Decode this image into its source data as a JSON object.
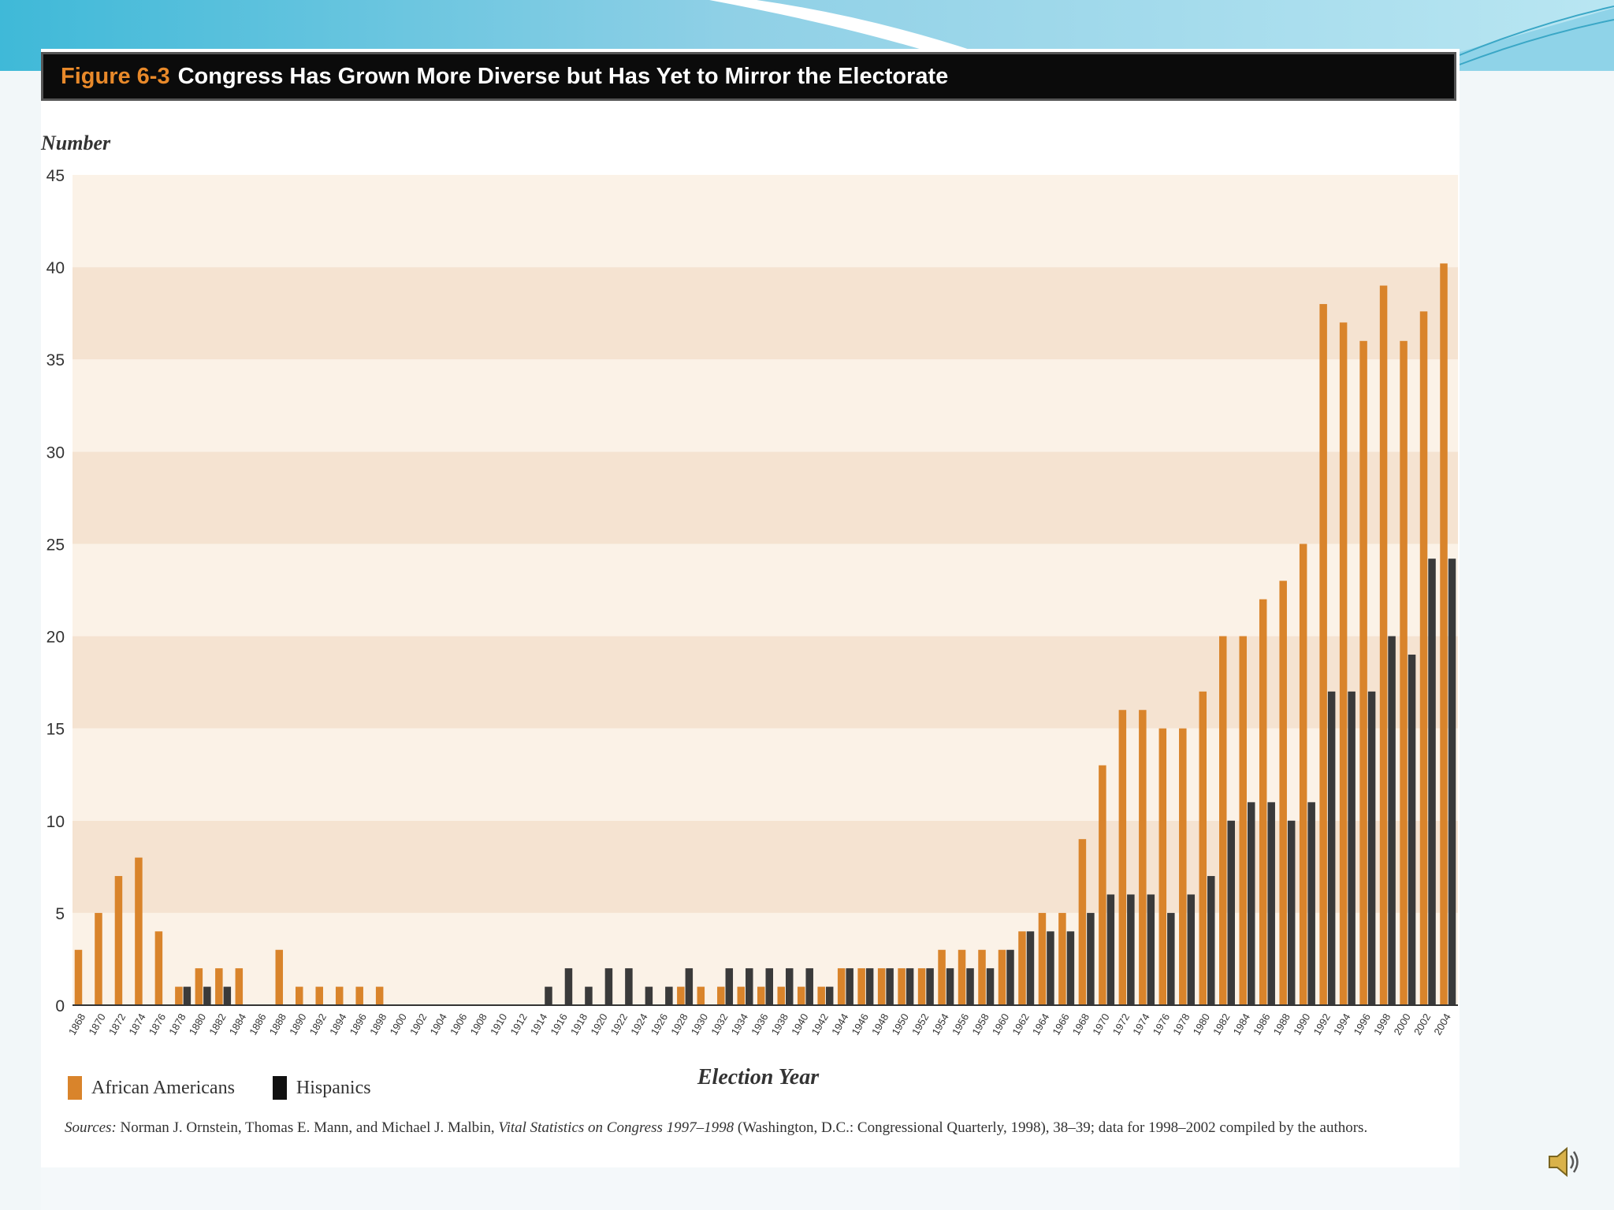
{
  "figure": {
    "number": "Figure 6-3",
    "title": "Congress Has Grown More Diverse but Has Yet to Mirror the Electorate"
  },
  "legend": {
    "african_americans": "African Americans",
    "hispanics": "Hispanics"
  },
  "source": {
    "label": "Sources:",
    "authors": "Norman J. Ornstein, Thomas E. Mann, and Michael J. Malbin,",
    "book": "Vital Statistics on Congress 1997–1998",
    "rest": "(Washington, D.C.: Congressional Quarterly, 1998), 38–39; data for 1998–2002 compiled by the authors."
  },
  "colors": {
    "african_americans": "#d9842b",
    "hispanics": "#3a3a3a",
    "band_light": "#fbf2e7",
    "band_dark": "#f5e3d1"
  },
  "icons": {
    "speaker": "speaker-icon"
  },
  "chart_data": {
    "type": "bar",
    "ylabel": "Number",
    "xlabel": "Election Year",
    "ylim": [
      0,
      45
    ],
    "yticks": [
      0,
      5,
      10,
      15,
      20,
      25,
      30,
      35,
      40,
      45
    ],
    "grid": "alternating horizontal bands",
    "categories": [
      "1868",
      "1870",
      "1872",
      "1874",
      "1876",
      "1878",
      "1880",
      "1882",
      "1884",
      "1886",
      "1888",
      "1890",
      "1892",
      "1894",
      "1896",
      "1898",
      "1900",
      "1902",
      "1904",
      "1906",
      "1908",
      "1910",
      "1912",
      "1914",
      "1916",
      "1918",
      "1920",
      "1922",
      "1924",
      "1926",
      "1928",
      "1930",
      "1932",
      "1934",
      "1936",
      "1938",
      "1940",
      "1942",
      "1944",
      "1946",
      "1948",
      "1950",
      "1952",
      "1954",
      "1956",
      "1958",
      "1960",
      "1962",
      "1964",
      "1966",
      "1968",
      "1970",
      "1972",
      "1974",
      "1976",
      "1978",
      "1980",
      "1982",
      "1984",
      "1986",
      "1988",
      "1990",
      "1992",
      "1994",
      "1996",
      "1998",
      "2000",
      "2002",
      "2004"
    ],
    "series": [
      {
        "name": "African Americans",
        "values": [
          3,
          5,
          7,
          8,
          4,
          1,
          2,
          2,
          2,
          0,
          3,
          1,
          1,
          1,
          1,
          1,
          0,
          0,
          0,
          0,
          0,
          0,
          0,
          0,
          0,
          0,
          0,
          0,
          0,
          0,
          1,
          1,
          1,
          1,
          1,
          1,
          1,
          1,
          2,
          2,
          2,
          2,
          2,
          3,
          3,
          3,
          3,
          4,
          5,
          5,
          9,
          13,
          16,
          16,
          15,
          15,
          17,
          20,
          20,
          22,
          23,
          25,
          38,
          37,
          36,
          39,
          36,
          37.6,
          40.2
        ]
      },
      {
        "name": "Hispanics",
        "values": [
          0,
          0,
          0,
          0,
          0,
          1,
          1,
          1,
          0,
          0,
          0,
          0,
          0,
          0,
          0,
          0,
          0,
          0,
          0,
          0,
          0,
          0,
          0,
          1,
          2,
          1,
          2,
          2,
          1,
          1,
          2,
          0,
          2,
          2,
          2,
          2,
          2,
          1,
          2,
          2,
          2,
          2,
          2,
          2,
          2,
          2,
          3,
          4,
          4,
          4,
          5,
          6,
          6,
          6,
          5,
          6,
          7,
          10,
          11,
          11,
          10,
          11,
          17,
          17,
          17,
          20,
          19,
          24.2,
          24.2
        ]
      }
    ]
  }
}
